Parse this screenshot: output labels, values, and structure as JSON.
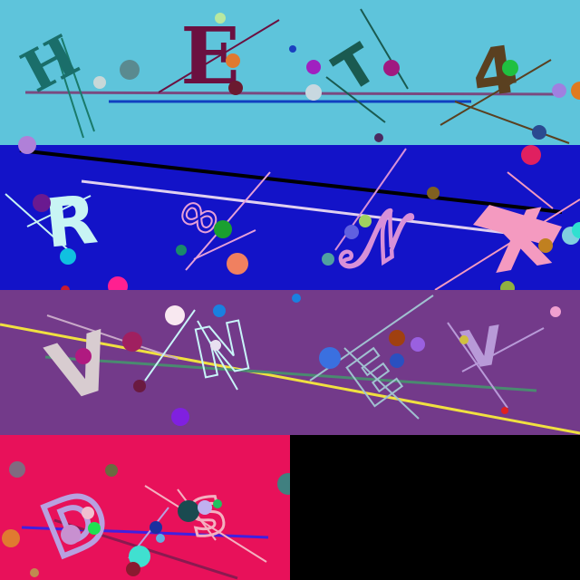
{
  "panels": [
    {
      "id": "panel-1",
      "background": "#5ec4db",
      "glyphs": [
        {
          "name": "glyph-h",
          "text": "H",
          "color": "#1a6e6a"
        },
        {
          "name": "glyph-e",
          "text": "E",
          "color": "#6b1040"
        },
        {
          "name": "glyph-t",
          "text": "T",
          "color": "#1a5a50"
        },
        {
          "name": "glyph-4",
          "text": "4",
          "color": "#5a4020"
        }
      ]
    },
    {
      "id": "panel-2",
      "background": "#1313c8",
      "glyphs": [
        {
          "name": "glyph-r",
          "text": "R",
          "color": "#c8f4f4"
        },
        {
          "name": "glyph-infinity",
          "text": "∞",
          "color": "#e6a0d8"
        },
        {
          "name": "glyph-n-script",
          "text": "𝒩",
          "color": "#d890d8"
        },
        {
          "name": "glyph-x",
          "text": "X",
          "color": "#f49ac0"
        }
      ]
    },
    {
      "id": "panel-3",
      "background": "#733a8a",
      "glyphs": [
        {
          "name": "glyph-v-1",
          "text": "V",
          "color": "#d8ccd0"
        },
        {
          "name": "glyph-n",
          "text": "N",
          "color": "#c8f4f8"
        },
        {
          "name": "glyph-e-2",
          "text": "E",
          "color": "#a0c0d0"
        },
        {
          "name": "glyph-v-2",
          "text": "V",
          "color": "#b89ad8"
        }
      ]
    },
    {
      "id": "panel-4",
      "background": "#e8115a",
      "glyphs": [
        {
          "name": "glyph-d",
          "text": "D",
          "color": "#b8a0e0"
        },
        {
          "name": "glyph-s",
          "text": "S",
          "color": "#f4b0c0"
        }
      ]
    },
    {
      "id": "panel-5",
      "background": "#000000",
      "glyphs": []
    }
  ]
}
